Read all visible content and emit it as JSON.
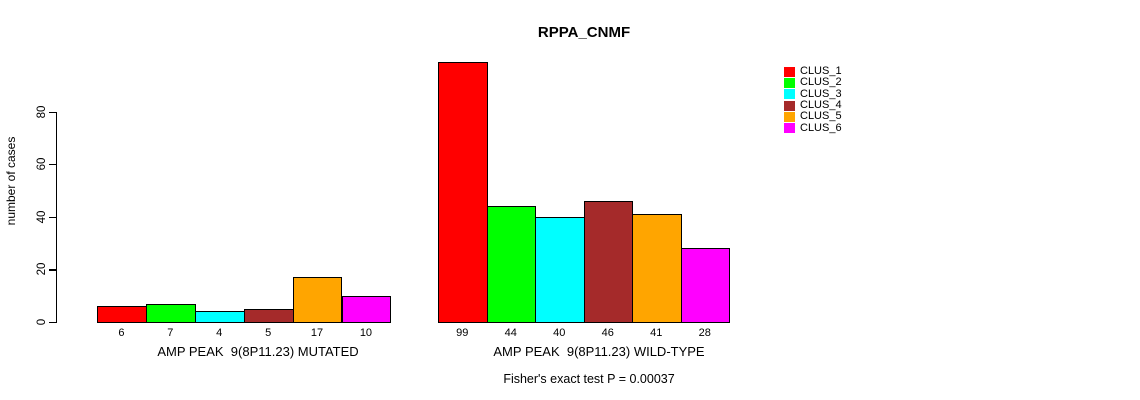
{
  "chart_data": {
    "type": "bar",
    "title": "RPPA_CNMF",
    "ylabel": "number of cases",
    "ylim": [
      0,
      80
    ],
    "yticks": [
      0,
      20,
      40,
      60,
      80
    ],
    "grid": false,
    "legend_position": "top-right",
    "clusters": [
      {
        "name": "CLUS_1",
        "color": "#FF0000"
      },
      {
        "name": "CLUS_2",
        "color": "#00FF00"
      },
      {
        "name": "CLUS_3",
        "color": "#00FFFF"
      },
      {
        "name": "CLUS_4",
        "color": "#A52A2A"
      },
      {
        "name": "CLUS_5",
        "color": "#FFA500"
      },
      {
        "name": "CLUS_6",
        "color": "#FF00FF"
      }
    ],
    "groups": [
      {
        "label": "AMP PEAK  9(8P11.23) MUTATED",
        "values": [
          6,
          7,
          4,
          5,
          17,
          10
        ]
      },
      {
        "label": "AMP PEAK  9(8P11.23) WILD-TYPE",
        "values": [
          99,
          44,
          40,
          46,
          41,
          28
        ]
      }
    ],
    "annotation": "Fisher's exact test P = 0.00037"
  }
}
